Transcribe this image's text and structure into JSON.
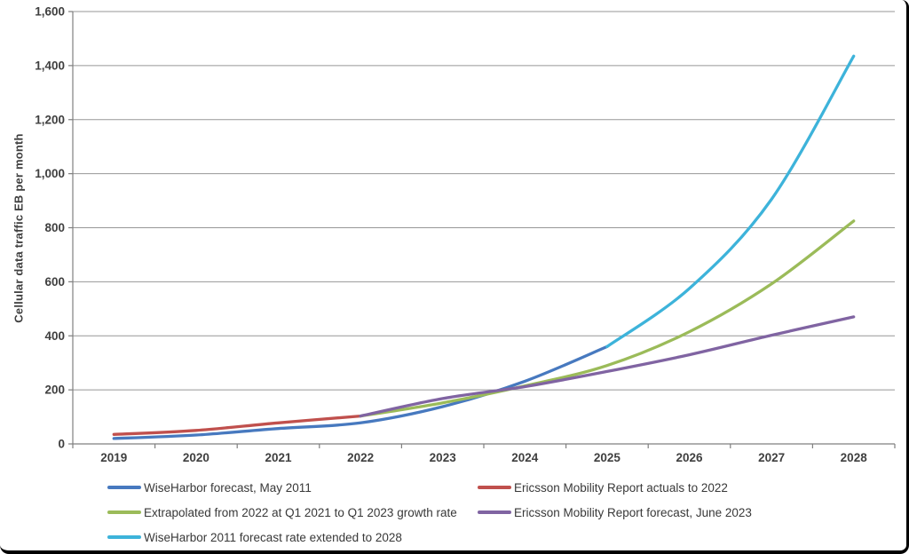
{
  "figure": {
    "background": "#ffffff",
    "frame_color": "#000000",
    "axis_color": "#7F7F7F",
    "grid_color": "#979797",
    "text_color": "#3F3F3F"
  },
  "chart_data": {
    "type": "line",
    "title": "",
    "xlabel": "",
    "ylabel": "Cellular data traffic EB per month",
    "ylim": [
      0,
      1600
    ],
    "grid": true,
    "legend_position": "bottom",
    "legend_columns": 2,
    "y_tick_values": [
      0,
      200,
      400,
      600,
      800,
      1000,
      1200,
      1400,
      1600
    ],
    "y_tick_labels": [
      "0",
      "200",
      "400",
      "600",
      "800",
      "1,000",
      "1,200",
      "1,400",
      "1,600"
    ],
    "categories": [
      "2019",
      "2020",
      "2021",
      "2022",
      "2023",
      "2024",
      "2025",
      "2026",
      "2027",
      "2028"
    ],
    "series": [
      {
        "name": "WiseHarbor forecast, May 2011",
        "color": "#4779BF",
        "values": [
          20,
          33,
          57,
          78,
          138,
          232,
          360,
          null,
          null,
          null
        ]
      },
      {
        "name": "Ericsson Mobility Report actuals to 2022",
        "color": "#C0504D",
        "values": [
          35,
          50,
          78,
          103,
          null,
          null,
          null,
          null,
          null,
          null
        ]
      },
      {
        "name": "Extrapolated from 2022 at Q1 2021 to Q1 2023 growth rate",
        "color": "#9BBB59",
        "values": [
          null,
          null,
          null,
          103,
          152,
          215,
          290,
          415,
          592,
          825
        ]
      },
      {
        "name": "Ericsson Mobility Report forecast, June 2023",
        "color": "#8064A2",
        "values": [
          null,
          null,
          null,
          103,
          168,
          212,
          268,
          330,
          402,
          470
        ]
      },
      {
        "name": "WiseHarbor 2011 forecast rate extended to 2028",
        "color": "#3DB3DA",
        "values": [
          null,
          null,
          null,
          null,
          null,
          null,
          360,
          575,
          905,
          1435
        ]
      }
    ]
  }
}
